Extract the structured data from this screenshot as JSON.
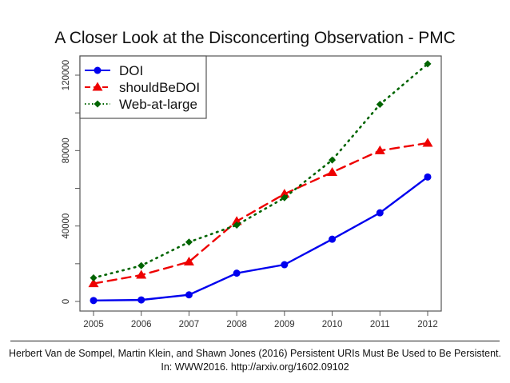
{
  "slide": {
    "title": "A Closer Look at the Disconcerting Observation - PMC",
    "citation_line1": "Herbert Van de Sompel, Martin Klein, and Shawn Jones (2016) Persistent URIs Must Be Used to Be Persistent.",
    "citation_line2": "In: WWW2016. http://arxiv.org/1602.09102"
  },
  "chart_data": {
    "type": "line",
    "title": "",
    "xlabel": "",
    "ylabel": "",
    "x": [
      2005,
      2006,
      2007,
      2008,
      2009,
      2010,
      2011,
      2012
    ],
    "x_tick_labels": [
      "2005",
      "2006",
      "2007",
      "2008",
      "2009",
      "2010",
      "2011",
      "2012"
    ],
    "y_ticks": [
      0,
      40000,
      80000,
      120000
    ],
    "y_tick_labels": [
      "0",
      "40000",
      "80000",
      "120000"
    ],
    "ylim": [
      0,
      130000
    ],
    "grid": false,
    "legend_position": "top-left",
    "series": [
      {
        "name": "DOI",
        "color": "#0000ee",
        "line": "solid",
        "marker": "circle",
        "values": [
          500,
          800,
          3500,
          15000,
          19500,
          33000,
          47000,
          66000
        ]
      },
      {
        "name": "shouldBeDOI",
        "color": "#ee0000",
        "line": "dashed",
        "marker": "triangle",
        "values": [
          9500,
          14000,
          21000,
          42500,
          57000,
          68500,
          80000,
          84000
        ]
      },
      {
        "name": "Web-at-large",
        "color": "#006400",
        "line": "dotted",
        "marker": "diamond",
        "values": [
          12500,
          19000,
          31500,
          40500,
          55000,
          75000,
          104500,
          126000
        ]
      }
    ]
  }
}
